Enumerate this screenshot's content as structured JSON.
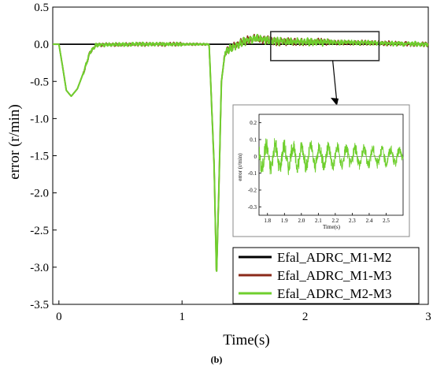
{
  "chart_data": [
    {
      "type": "line",
      "panel": "main",
      "xlabel": "Time(s)",
      "ylabel": "error (r/min)",
      "xlim": [
        -0.05,
        3.0
      ],
      "ylim": [
        -3.5,
        0.5
      ],
      "xticks": [
        0,
        1,
        2,
        3
      ],
      "xtick_labels": [
        "0",
        "1",
        "2",
        "3"
      ],
      "yticks": [
        0.5,
        0.0,
        -0.5,
        -1.0,
        -1.5,
        -2.0,
        -2.5,
        -3.0,
        -3.5
      ],
      "ytick_labels": [
        "0.5",
        "0.0",
        "-0.5",
        "-1.0",
        "-1.5",
        "-2.0",
        "-2.5",
        "-3.0",
        "-3.5"
      ],
      "grid": false,
      "legend_position": "bottom-right",
      "zoom_box_x": [
        1.72,
        2.6
      ],
      "zoom_box_y": [
        -0.22,
        0.17
      ],
      "series": [
        {
          "name": "Efal_ADRC_M1-M2",
          "color": "#000000",
          "x": [
            -0.05,
            0.0,
            0.6,
            1.0,
            1.26,
            1.32,
            1.38,
            1.5,
            1.75,
            2.0,
            2.5,
            3.0
          ],
          "y": [
            0,
            0,
            0,
            0,
            0,
            0,
            0,
            0,
            0,
            0,
            0,
            0
          ]
        },
        {
          "name": "Efal_ADRC_M1-M3",
          "color": "#8b2a1a",
          "x": [
            -0.05,
            0.0,
            0.03,
            0.06,
            0.1,
            0.15,
            0.2,
            0.25,
            0.3,
            0.6,
            1.0,
            1.22,
            1.26,
            1.28,
            1.3,
            1.32,
            1.35,
            1.4,
            1.5,
            1.6,
            1.75,
            2.0,
            2.5,
            3.0
          ],
          "y": [
            0,
            0,
            -0.3,
            -0.62,
            -0.7,
            -0.6,
            -0.38,
            -0.12,
            -0.01,
            0.0,
            0.0,
            0.0,
            -1.6,
            -3.12,
            -1.9,
            -0.5,
            -0.1,
            -0.05,
            0.04,
            0.08,
            0.04,
            0.03,
            0.02,
            0.0
          ]
        },
        {
          "name": "Efal_ADRC_M2-M3",
          "color": "#6fcf2e",
          "x": [
            -0.05,
            0.0,
            0.03,
            0.06,
            0.1,
            0.15,
            0.2,
            0.25,
            0.3,
            0.6,
            1.0,
            1.22,
            1.26,
            1.28,
            1.3,
            1.32,
            1.35,
            1.4,
            1.5,
            1.6,
            1.75,
            2.0,
            2.5,
            3.0
          ],
          "y": [
            0,
            0,
            -0.3,
            -0.62,
            -0.7,
            -0.6,
            -0.38,
            -0.12,
            -0.01,
            0.0,
            0.0,
            0.0,
            -1.6,
            -3.12,
            -1.9,
            -0.5,
            -0.1,
            -0.05,
            0.04,
            0.08,
            0.04,
            0.03,
            0.02,
            0.0
          ]
        }
      ]
    },
    {
      "type": "line",
      "panel": "inset",
      "xlabel": "Time(s)",
      "ylabel": "error (r/min)",
      "xlim": [
        1.75,
        2.6
      ],
      "ylim": [
        -0.35,
        0.25
      ],
      "xticks": [
        1.8,
        1.9,
        2.0,
        2.1,
        2.2,
        2.3,
        2.4,
        2.5
      ],
      "xtick_labels": [
        "1.8",
        "1.9",
        "2.0",
        "2.1",
        "2.2",
        "2.3",
        "2.4",
        "2.5"
      ],
      "yticks": [
        0.2,
        0.1,
        0.0,
        -0.1,
        -0.2,
        -0.3
      ],
      "ytick_labels": [
        "0.2",
        "0.1",
        "0",
        "-0.1",
        "-0.2",
        "-0.3"
      ],
      "series": [
        {
          "name": "Efal_ADRC_M2-M3",
          "color": "#6fcf2e",
          "x": [
            1.75,
            1.8,
            1.85,
            1.9,
            1.95,
            2.0,
            2.1,
            2.2,
            2.3,
            2.4,
            2.5,
            2.6
          ],
          "y": [
            0.0,
            0.1,
            -0.1,
            0.12,
            -0.08,
            0.08,
            -0.06,
            0.07,
            -0.05,
            0.06,
            -0.04,
            0.0
          ]
        }
      ]
    }
  ],
  "figure": {
    "caption": "(b)"
  }
}
